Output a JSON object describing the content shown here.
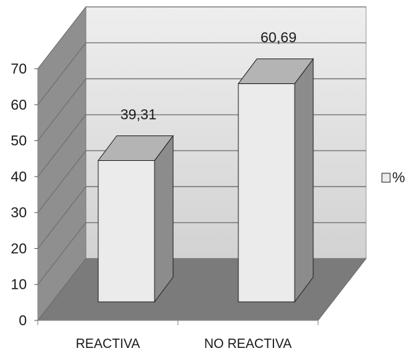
{
  "chart_data": {
    "type": "bar",
    "categories": [
      "REACTIVA",
      "NO REACTIVA"
    ],
    "series": [
      {
        "name": "%",
        "values": [
          39.31,
          60.69
        ],
        "data_labels": [
          "39,31",
          "60,69"
        ]
      }
    ],
    "ylim": [
      0,
      70
    ],
    "yticks": [
      "0",
      "10",
      "20",
      "30",
      "40",
      "50",
      "60",
      "70"
    ],
    "grid": true,
    "legend": {
      "position": "right",
      "entries": [
        "%"
      ]
    },
    "colors": {
      "bar_front": "#ebebeb",
      "bar_top": "#b4b4b4",
      "bar_side": "#8c8c8c",
      "back_wall": "#e3e3e3",
      "side_wall": "#8f8f8f",
      "floor": "#7b7b7b"
    }
  }
}
